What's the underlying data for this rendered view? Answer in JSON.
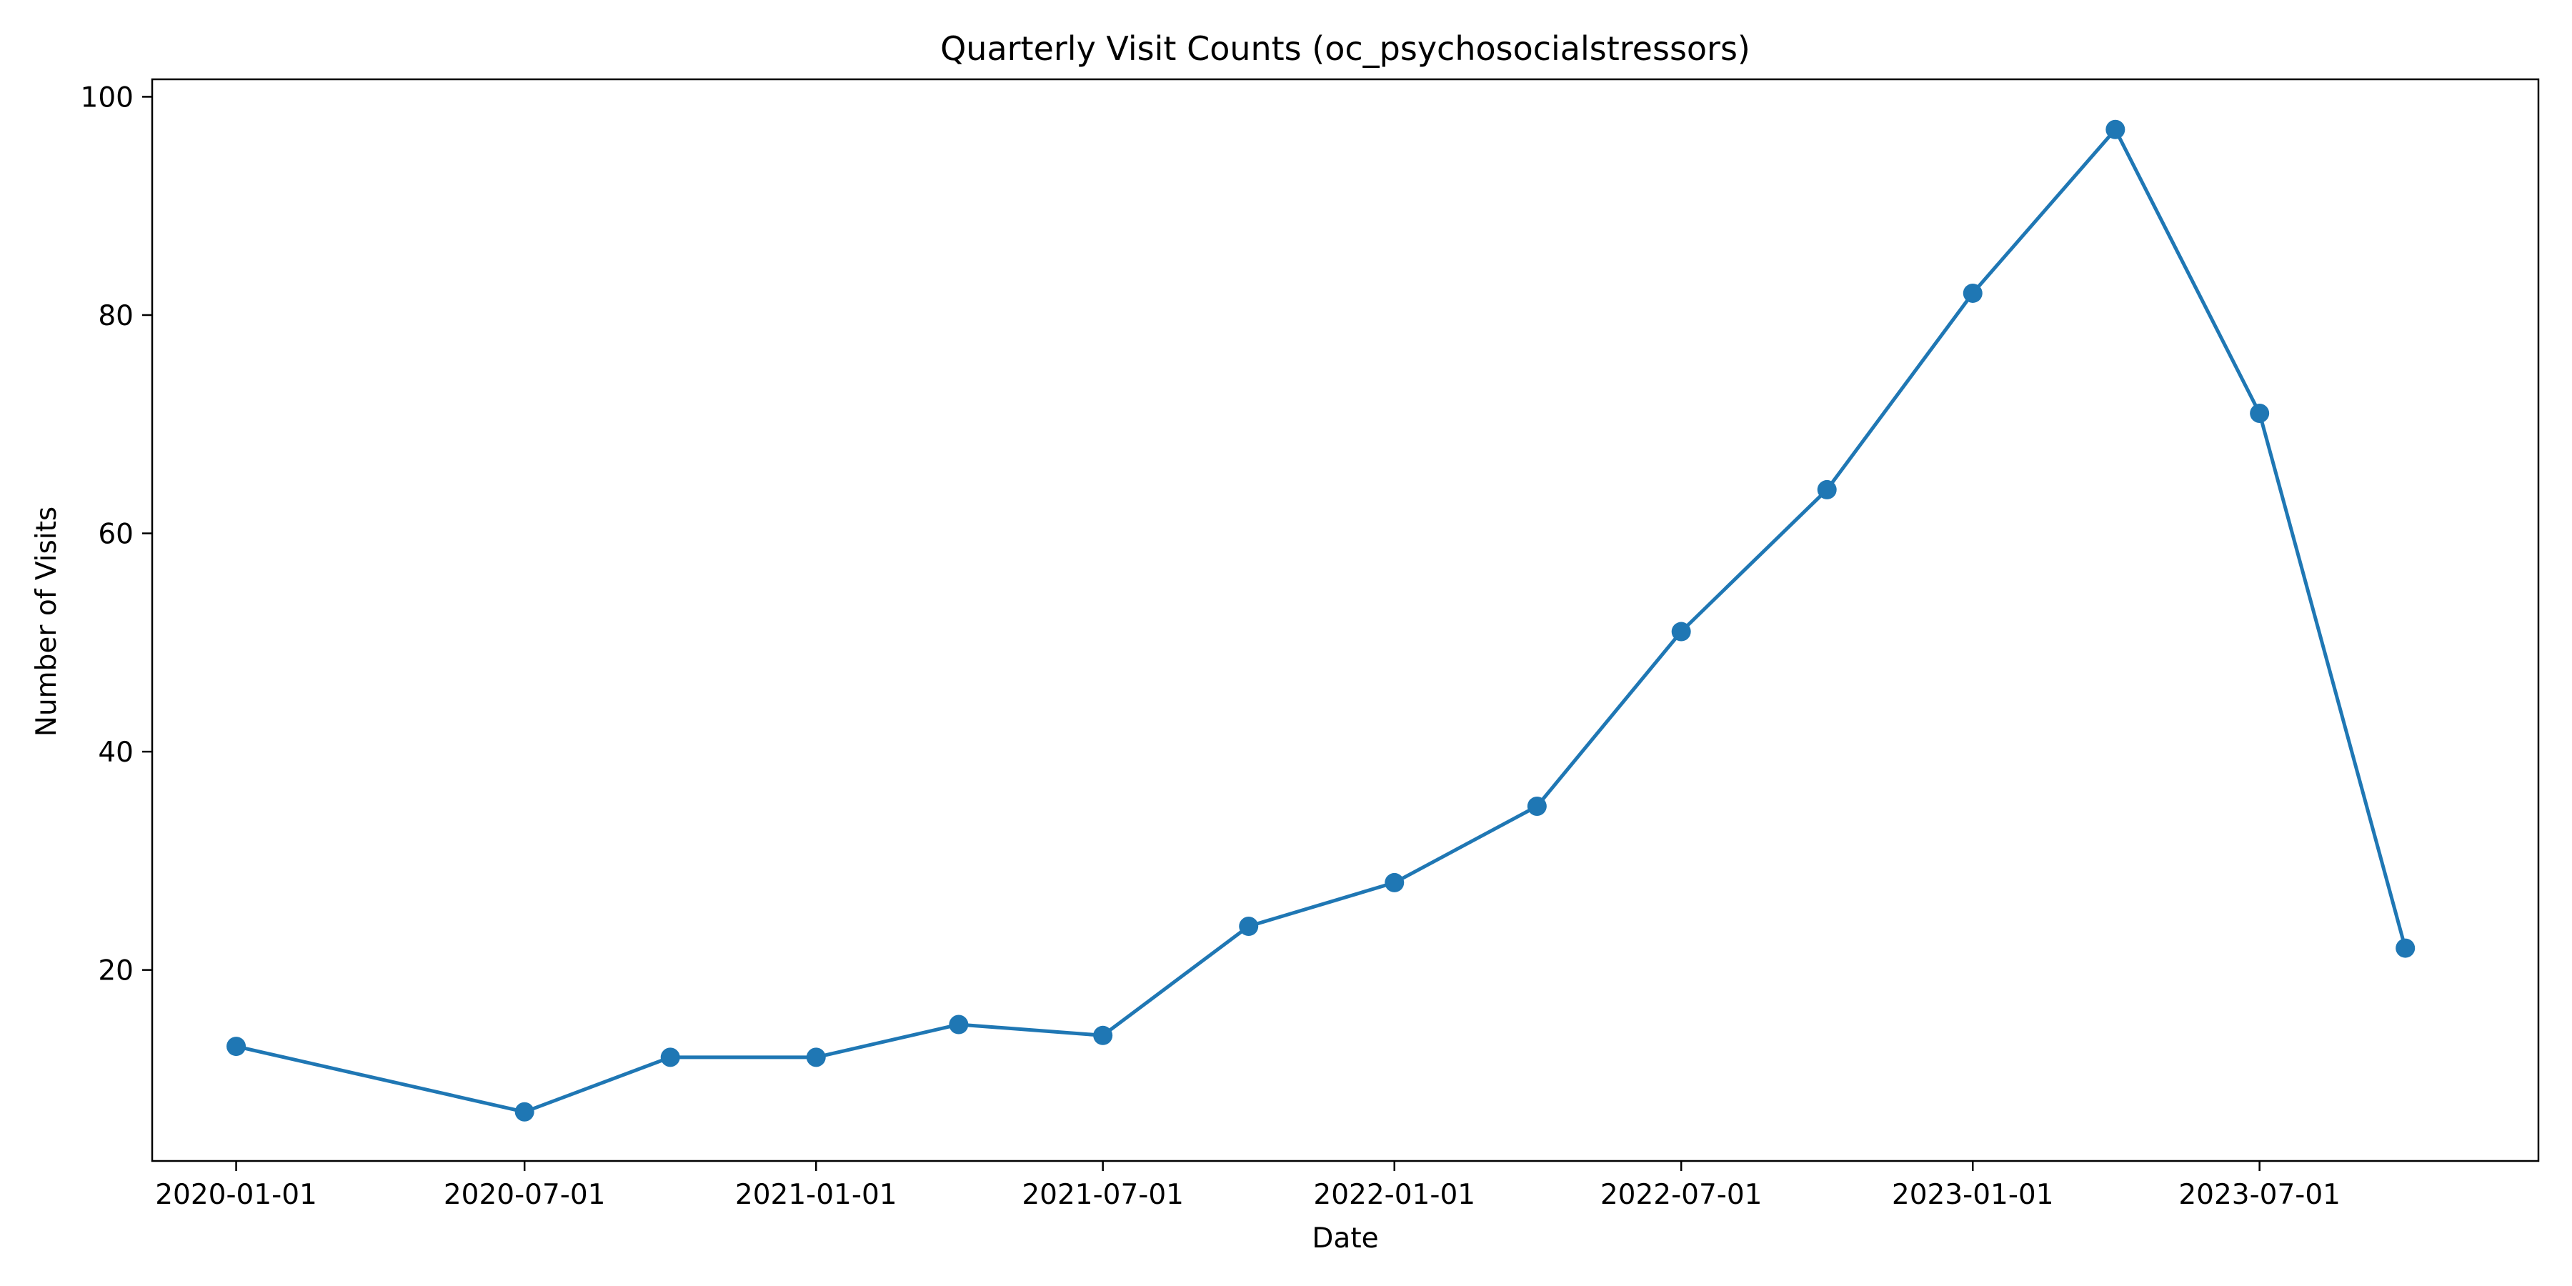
{
  "chart_data": {
    "type": "line",
    "title": "Quarterly Visit Counts (oc_psychosocialstressors)",
    "xlabel": "Date",
    "ylabel": "Number of Visits",
    "x_type": "date",
    "xlim": [
      "2019-11-09",
      "2023-12-24"
    ],
    "ylim": [
      2.5,
      101.6
    ],
    "x_ticks": [
      "2020-01-01",
      "2020-07-01",
      "2021-01-01",
      "2021-07-01",
      "2022-01-01",
      "2022-07-01",
      "2023-01-01",
      "2023-07-01"
    ],
    "y_ticks": [
      20,
      40,
      60,
      80,
      100
    ],
    "grid": false,
    "legend": "none",
    "series_color": "#1f77b4",
    "series": [
      {
        "x": [
          "2020-01-01",
          "2020-07-01",
          "2020-10-01",
          "2021-01-01",
          "2021-04-01",
          "2021-07-01",
          "2021-10-01",
          "2022-01-01",
          "2022-04-01",
          "2022-07-01",
          "2022-10-01",
          "2023-01-01",
          "2023-04-01",
          "2023-07-01",
          "2023-10-01"
        ],
        "values": [
          13,
          7,
          12,
          12,
          15,
          14,
          24,
          28,
          35,
          51,
          64,
          82,
          97,
          71,
          22
        ]
      }
    ]
  }
}
